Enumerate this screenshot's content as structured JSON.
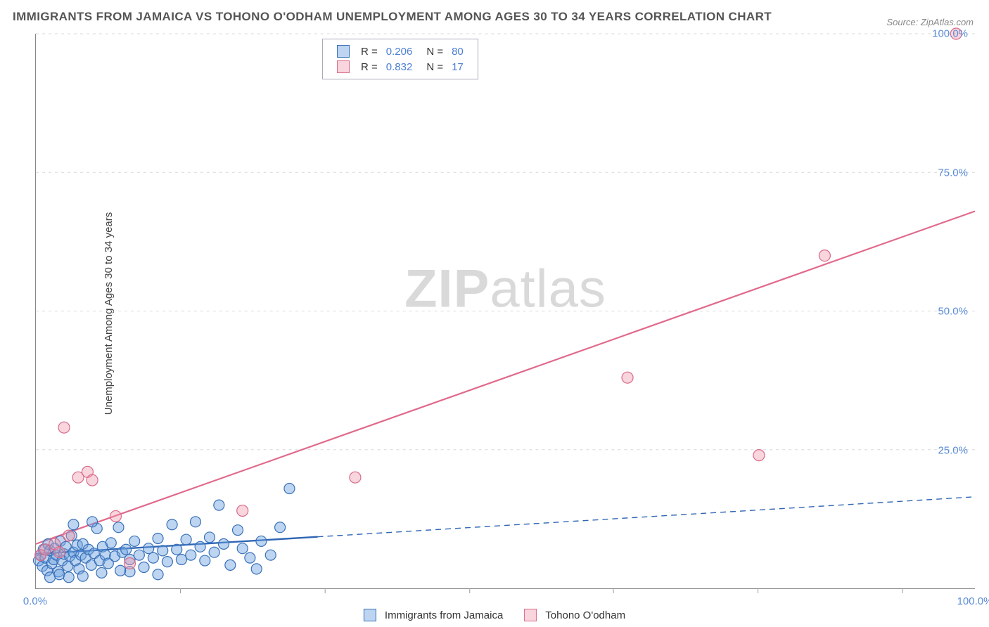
{
  "chart": {
    "type": "scatter",
    "title": "IMMIGRANTS FROM JAMAICA VS TOHONO O'ODHAM UNEMPLOYMENT AMONG AGES 30 TO 34 YEARS CORRELATION CHART",
    "source": "Source: ZipAtlas.com",
    "ylabel": "Unemployment Among Ages 30 to 34 years",
    "watermark_a": "ZIP",
    "watermark_b": "atlas",
    "background_color": "#ffffff",
    "grid_color": "#d8d8d8",
    "axis_color": "#888888",
    "tick_label_color": "#5b8dd6",
    "title_color": "#555555",
    "xlim": [
      0,
      100
    ],
    "ylim": [
      0,
      100
    ],
    "yticks": [
      {
        "v": 25,
        "label": "25.0%"
      },
      {
        "v": 50,
        "label": "50.0%"
      },
      {
        "v": 75,
        "label": "75.0%"
      },
      {
        "v": 100,
        "label": "100.0%"
      }
    ],
    "xticks_labeled": [
      {
        "v": 0,
        "label": "0.0%"
      },
      {
        "v": 100,
        "label": "100.0%"
      }
    ],
    "xticks_marks": [
      15.4,
      30.8,
      46.2,
      61.5,
      76.9,
      92.3
    ],
    "legend_top": [
      {
        "swatch": "blue",
        "R": "0.206",
        "N": "80"
      },
      {
        "swatch": "pink",
        "R": "0.832",
        "N": "17"
      }
    ],
    "legend_bottom": [
      {
        "swatch": "blue",
        "label": "Immigrants from Jamaica"
      },
      {
        "swatch": "pink",
        "label": "Tohono O'odham"
      }
    ],
    "series": {
      "blue": {
        "color_fill": "rgba(109,161,223,0.45)",
        "color_stroke": "#3970b8",
        "marker_r": 7.5,
        "line_color": "#2f66b5",
        "line_solid_width": 2.4,
        "line_dash_width": 1.4,
        "line_dash_pattern": "8 6",
        "trend": {
          "y0": 6.2,
          "y100": 16.5,
          "solid_until_x": 30
        },
        "points": [
          [
            0.3,
            5
          ],
          [
            0.5,
            6
          ],
          [
            0.7,
            4
          ],
          [
            0.8,
            7
          ],
          [
            1,
            5.5
          ],
          [
            1.2,
            3.2
          ],
          [
            1.3,
            8
          ],
          [
            1.5,
            6.8
          ],
          [
            1.7,
            4.5
          ],
          [
            1.9,
            5.2
          ],
          [
            2,
            7.2
          ],
          [
            2.2,
            6
          ],
          [
            2.4,
            3
          ],
          [
            2.6,
            8.5
          ],
          [
            2.8,
            5
          ],
          [
            3,
            6.2
          ],
          [
            3.2,
            7.5
          ],
          [
            3.4,
            4
          ],
          [
            3.6,
            5.8
          ],
          [
            3.8,
            9.5
          ],
          [
            4,
            6.5
          ],
          [
            4.2,
            5
          ],
          [
            4.4,
            7.8
          ],
          [
            4.6,
            3.5
          ],
          [
            4.8,
            6
          ],
          [
            5,
            8
          ],
          [
            5.3,
            5.5
          ],
          [
            5.6,
            7
          ],
          [
            5.9,
            4.2
          ],
          [
            6.2,
            6.3
          ],
          [
            6.5,
            10.8
          ],
          [
            6.8,
            5
          ],
          [
            7.1,
            7.5
          ],
          [
            7.4,
            6
          ],
          [
            7.7,
            4.5
          ],
          [
            8,
            8.2
          ],
          [
            8.4,
            5.8
          ],
          [
            8.8,
            11
          ],
          [
            9.2,
            6.5
          ],
          [
            9.6,
            7
          ],
          [
            10,
            5.2
          ],
          [
            10.5,
            8.5
          ],
          [
            11,
            6
          ],
          [
            11.5,
            3.8
          ],
          [
            12,
            7.2
          ],
          [
            12.5,
            5.5
          ],
          [
            13,
            9
          ],
          [
            13.5,
            6.8
          ],
          [
            14,
            4.8
          ],
          [
            14.5,
            11.5
          ],
          [
            15,
            7
          ],
          [
            15.5,
            5.2
          ],
          [
            16,
            8.8
          ],
          [
            16.5,
            6
          ],
          [
            17,
            12
          ],
          [
            17.5,
            7.5
          ],
          [
            18,
            5
          ],
          [
            18.5,
            9.2
          ],
          [
            19,
            6.5
          ],
          [
            19.5,
            15
          ],
          [
            20,
            8
          ],
          [
            20.7,
            4.2
          ],
          [
            21.5,
            10.5
          ],
          [
            22,
            7.2
          ],
          [
            22.8,
            5.5
          ],
          [
            23.5,
            3.5
          ],
          [
            24,
            8.5
          ],
          [
            25,
            6
          ],
          [
            26,
            11
          ],
          [
            27,
            18
          ],
          [
            1.5,
            2
          ],
          [
            2.5,
            2.5
          ],
          [
            3.5,
            2
          ],
          [
            5,
            2.2
          ],
          [
            7,
            2.8
          ],
          [
            10,
            3
          ],
          [
            13,
            2.5
          ],
          [
            6,
            12
          ],
          [
            4,
            11.5
          ],
          [
            9,
            3.2
          ]
        ]
      },
      "pink": {
        "color_fill": "rgba(240,150,170,0.4)",
        "color_stroke": "#d86a8a",
        "marker_r": 8,
        "line_color": "#e06a8c",
        "line_solid_width": 2.2,
        "trend": {
          "y0": 8,
          "y100": 68
        },
        "points": [
          [
            0.5,
            6
          ],
          [
            1,
            7
          ],
          [
            2,
            8
          ],
          [
            2.5,
            6.5
          ],
          [
            3,
            29
          ],
          [
            3.5,
            9.5
          ],
          [
            4.5,
            20
          ],
          [
            5.5,
            21
          ],
          [
            6,
            19.5
          ],
          [
            8.5,
            13
          ],
          [
            10,
            4.5
          ],
          [
            22,
            14
          ],
          [
            34,
            20
          ],
          [
            63,
            38
          ],
          [
            77,
            24
          ],
          [
            84,
            60
          ],
          [
            98,
            100
          ]
        ]
      }
    }
  }
}
